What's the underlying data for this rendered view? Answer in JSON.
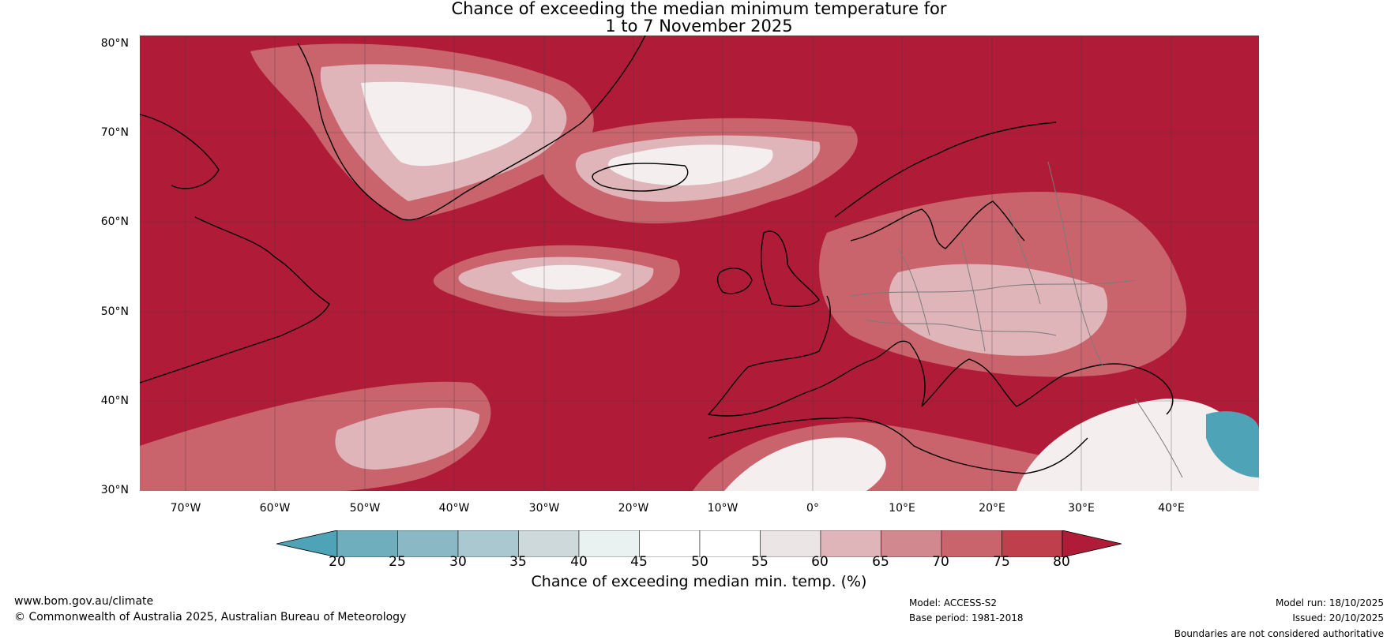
{
  "title_line1": "Chance of exceeding the median minimum temperature for",
  "title_line2": "1 to 7 November 2025",
  "lat_labels": [
    "80°N",
    "70°N",
    "60°N",
    "50°N",
    "40°N",
    "30°N"
  ],
  "lon_labels": [
    "70°W",
    "60°W",
    "50°W",
    "40°W",
    "30°W",
    "20°W",
    "10°W",
    "0°",
    "10°E",
    "20°E",
    "30°E",
    "40°E"
  ],
  "colorbar": {
    "ticks": [
      "20",
      "25",
      "30",
      "35",
      "40",
      "45",
      "50",
      "55",
      "60",
      "65",
      "70",
      "75",
      "80"
    ],
    "colors": [
      "#4ea4b6",
      "#6faebc",
      "#8ab8c4",
      "#a9c8cf",
      "#cdd9da",
      "#eaf1f1",
      "#ffffff",
      "#ffffff",
      "#ebe5e6",
      "#e0b5ba",
      "#d2888f",
      "#c9646d",
      "#bf3f4d",
      "#b01c38"
    ],
    "label": "Chance of exceeding median min. temp. (%)"
  },
  "map_colors": {
    "high": "#b01c38",
    "mid": "#c9646d",
    "low": "#e0b5ba",
    "white": "#f4eeef",
    "blue": "#4ea4b6",
    "land": "#000000"
  },
  "footer": {
    "website": "www.bom.gov.au/climate",
    "copyright": "© Commonwealth of Australia 2025, Australian Bureau of Meteorology",
    "model": "Model: ACCESS-S2",
    "base_period": "Base period: 1981-2018",
    "model_run": "Model run: 18/10/2025",
    "issued": "Issued: 20/10/2025",
    "disclaimer": "Boundaries are not considered authoritative"
  }
}
